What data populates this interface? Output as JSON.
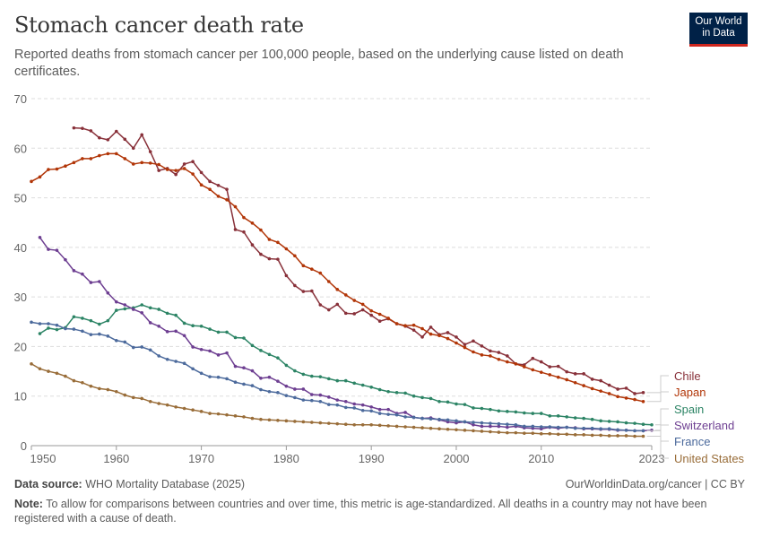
{
  "header": {
    "title": "Stomach cancer death rate",
    "subtitle": "Reported deaths from stomach cancer per 100,000 people, based on the underlying cause listed on death certificates.",
    "logo_line1": "Our World",
    "logo_line2": "in Data"
  },
  "footer": {
    "source_label": "Data source:",
    "source": "WHO Mortality Database (2025)",
    "url": "OurWorldinData.org/cancer | CC BY",
    "note_label": "Note:",
    "note": "To allow for comparisons between countries and over time, this metric is age-standardized. All deaths in a country may not have been registered with a cause of death."
  },
  "chart_data": {
    "type": "line",
    "title": "Stomach cancer death rate",
    "xlim": [
      1950,
      2023
    ],
    "ylim": [
      0,
      70
    ],
    "x_ticks": [
      "1950",
      "1960",
      "1970",
      "1980",
      "1990",
      "2000",
      "2010",
      "2023"
    ],
    "y_ticks": [
      "0",
      "10",
      "20",
      "30",
      "40",
      "50",
      "60",
      "70"
    ],
    "grid": "horizontal dashed",
    "legend": "right, end labels",
    "series": [
      {
        "name": "Chile",
        "color": "#883039",
        "start": 1955,
        "values": [
          64.1,
          64.0,
          63.5,
          62.1,
          61.7,
          63.4,
          61.8,
          60.0,
          62.7,
          59.3,
          55.5,
          55.9,
          54.7,
          56.8,
          57.3,
          55.1,
          53.3,
          52.5,
          51.7,
          43.6,
          43.1,
          40.5,
          38.6,
          37.7,
          37.6,
          34.3,
          32.3,
          31.1,
          31.2,
          28.4,
          27.4,
          28.5,
          26.7,
          26.6,
          27.4,
          26.3,
          25.1,
          25.6,
          24.6,
          24.1,
          23.3,
          21.9,
          23.9,
          22.4,
          22.8,
          21.9,
          20.4,
          21.1,
          20.1,
          19.1,
          18.8,
          18.1,
          16.5,
          16.3,
          17.6,
          16.9,
          15.9,
          16.0,
          14.9,
          14.5,
          14.5,
          13.4,
          13.1,
          12.2,
          11.4,
          11.6,
          10.5,
          10.7
        ]
      },
      {
        "name": "Japan",
        "color": "#b13507",
        "start": 1950,
        "values": [
          53.3,
          54.2,
          55.7,
          55.8,
          56.4,
          57.1,
          57.9,
          57.9,
          58.5,
          58.9,
          58.9,
          57.9,
          56.8,
          57.1,
          57.0,
          56.7,
          55.7,
          55.5,
          55.9,
          54.8,
          52.6,
          51.7,
          50.3,
          49.6,
          48.2,
          46.0,
          44.9,
          43.5,
          41.6,
          41.0,
          39.7,
          38.3,
          36.3,
          35.6,
          34.8,
          33.1,
          31.5,
          30.4,
          29.3,
          28.5,
          27.2,
          26.5,
          25.7,
          24.6,
          24.2,
          24.3,
          23.6,
          22.5,
          22.2,
          21.6,
          20.7,
          19.8,
          18.9,
          18.3,
          18.1,
          17.4,
          16.9,
          16.5,
          15.9,
          15.3,
          14.8,
          14.3,
          13.8,
          13.3,
          12.7,
          12.1,
          11.5,
          11.0,
          10.5,
          9.9,
          9.6,
          9.3,
          8.9
        ]
      },
      {
        "name": "Spain",
        "color": "#2c8465",
        "start": 1951,
        "values": [
          22.6,
          23.7,
          23.4,
          23.8,
          26.0,
          25.7,
          25.2,
          24.5,
          25.2,
          27.3,
          27.6,
          27.8,
          28.4,
          27.8,
          27.5,
          26.7,
          26.3,
          24.7,
          24.2,
          24.1,
          23.5,
          22.9,
          22.9,
          21.8,
          21.7,
          20.2,
          19.2,
          18.4,
          17.7,
          16.2,
          15.1,
          14.4,
          14.0,
          13.9,
          13.5,
          13.1,
          13.1,
          12.6,
          12.2,
          11.8,
          11.3,
          10.9,
          10.7,
          10.6,
          10.0,
          9.7,
          9.5,
          8.9,
          8.8,
          8.4,
          8.3,
          7.6,
          7.5,
          7.3,
          7.0,
          6.9,
          6.8,
          6.6,
          6.5,
          6.5,
          6.0,
          6.0,
          5.8,
          5.6,
          5.5,
          5.3,
          5.0,
          4.9,
          4.8,
          4.6,
          4.5,
          4.3,
          4.2
        ]
      },
      {
        "name": "Switzerland",
        "color": "#6d3e91",
        "start": 1951,
        "values": [
          42.0,
          39.6,
          39.4,
          37.5,
          35.3,
          34.6,
          32.9,
          33.1,
          30.8,
          29.0,
          28.4,
          27.5,
          26.8,
          24.8,
          24.1,
          23.0,
          23.1,
          22.2,
          19.9,
          19.4,
          19.1,
          18.3,
          18.7,
          16.0,
          15.7,
          15.1,
          13.6,
          13.8,
          13.0,
          12.0,
          11.4,
          11.4,
          10.3,
          10.2,
          9.8,
          9.2,
          8.9,
          8.4,
          8.2,
          7.8,
          7.3,
          7.3,
          6.5,
          6.7,
          5.7,
          5.5,
          5.6,
          5.2,
          4.8,
          4.6,
          4.8,
          4.2,
          3.9,
          3.9,
          3.9,
          3.7,
          3.9,
          3.6,
          3.5,
          3.4,
          3.7,
          3.5,
          3.7,
          3.6,
          3.4,
          3.4,
          3.3,
          3.3,
          3.1,
          3.1,
          3.0,
          3.0,
          3.1
        ]
      },
      {
        "name": "France",
        "color": "#4c6a9c",
        "start": 1950,
        "values": [
          24.9,
          24.6,
          24.6,
          24.3,
          23.6,
          23.5,
          23.1,
          22.4,
          22.5,
          22.1,
          21.2,
          20.9,
          19.8,
          19.9,
          19.3,
          18.1,
          17.4,
          17.0,
          16.6,
          15.5,
          14.6,
          13.9,
          13.8,
          13.5,
          12.8,
          12.4,
          12.1,
          11.3,
          10.9,
          10.7,
          10.1,
          9.7,
          9.2,
          9.1,
          8.9,
          8.3,
          8.2,
          7.7,
          7.6,
          7.1,
          7.0,
          6.5,
          6.3,
          6.2,
          5.8,
          5.7,
          5.5,
          5.4,
          5.3,
          5.2,
          5.0,
          4.8,
          4.7,
          4.6,
          4.5,
          4.4,
          4.3,
          4.2,
          3.9,
          3.9,
          3.8,
          3.8,
          3.7,
          3.7,
          3.5,
          3.5,
          3.5,
          3.4,
          3.4,
          3.2,
          3.1,
          3.0,
          3.0
        ]
      },
      {
        "name": "United States",
        "color": "#996d39",
        "start": 1950,
        "values": [
          16.5,
          15.5,
          15.0,
          14.6,
          14.0,
          13.1,
          12.7,
          12.0,
          11.5,
          11.3,
          10.9,
          10.2,
          9.7,
          9.5,
          8.9,
          8.5,
          8.2,
          7.8,
          7.5,
          7.2,
          6.9,
          6.5,
          6.4,
          6.2,
          6.0,
          5.8,
          5.5,
          5.3,
          5.2,
          5.1,
          5.0,
          4.9,
          4.8,
          4.7,
          4.6,
          4.5,
          4.4,
          4.3,
          4.2,
          4.2,
          4.2,
          4.1,
          4.0,
          3.9,
          3.8,
          3.7,
          3.6,
          3.5,
          3.4,
          3.3,
          3.2,
          3.1,
          3.0,
          2.9,
          2.8,
          2.7,
          2.6,
          2.6,
          2.5,
          2.5,
          2.4,
          2.4,
          2.3,
          2.3,
          2.2,
          2.2,
          2.1,
          2.1,
          2.0,
          2.0,
          2.0,
          1.9,
          1.9
        ]
      }
    ]
  }
}
